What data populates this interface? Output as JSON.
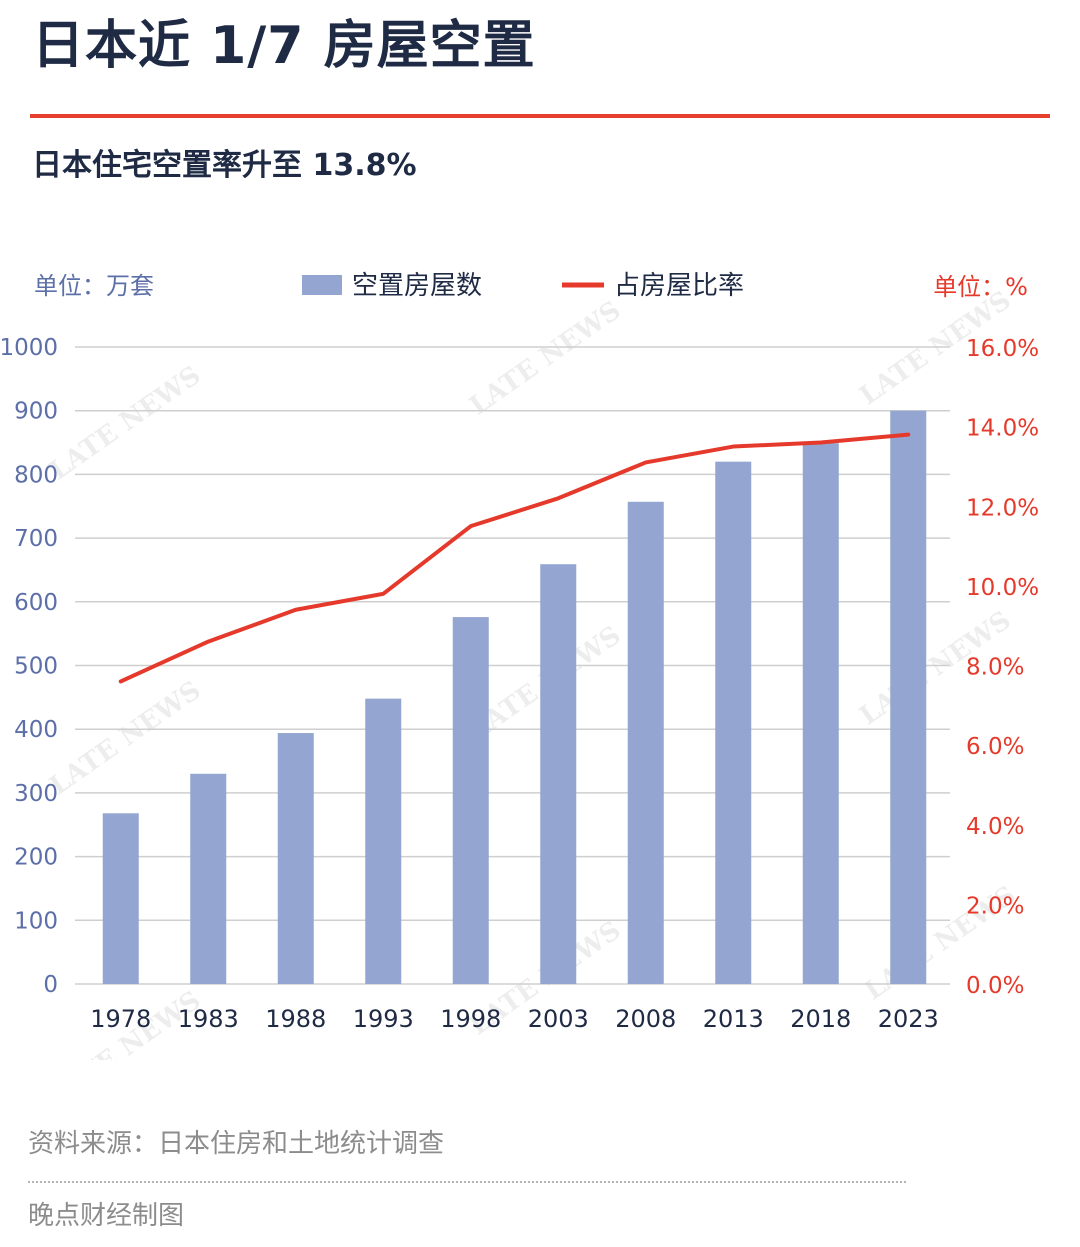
{
  "title": "日本近 1/7 房屋空置",
  "subtitle": "日本住宅空置率升至 13.8%",
  "source": "资料来源：日本住房和土地统计调查",
  "credit": "晚点财经制图",
  "watermark": "LATE NEWS",
  "colors": {
    "accent": "#e8402e",
    "title": "#1f2a44",
    "bar": "#93a5d0",
    "line": "#e53a2b",
    "left_axis": "#5c6fa8",
    "right_axis": "#e53a2b",
    "grid": "#cfcfcf"
  },
  "chart_data": {
    "type": "bar+line",
    "categories": [
      "1978",
      "1983",
      "1988",
      "1993",
      "1998",
      "2003",
      "2008",
      "2013",
      "2018",
      "2023"
    ],
    "series": [
      {
        "name": "空置房屋数",
        "type": "bar",
        "axis": "left",
        "values": [
          268,
          330,
          394,
          448,
          576,
          659,
          757,
          820,
          849,
          900
        ]
      },
      {
        "name": "占房屋比率",
        "type": "line",
        "axis": "right",
        "values": [
          7.6,
          8.6,
          9.4,
          9.8,
          11.5,
          12.2,
          13.1,
          13.5,
          13.6,
          13.8
        ]
      }
    ],
    "left_axis": {
      "unit_label": "单位：万套",
      "min": 0,
      "max": 1000,
      "step": 100,
      "ticks": [
        "0",
        "100",
        "200",
        "300",
        "400",
        "500",
        "600",
        "700",
        "800",
        "900",
        "1000"
      ]
    },
    "right_axis": {
      "unit_label": "单位：%",
      "min": 0,
      "max": 16,
      "step": 2,
      "ticks": [
        "0.0%",
        "2.0%",
        "4.0%",
        "6.0%",
        "8.0%",
        "10.0%",
        "12.0%",
        "14.0%",
        "16.0%"
      ]
    },
    "grid": true,
    "legend_position": "top"
  }
}
